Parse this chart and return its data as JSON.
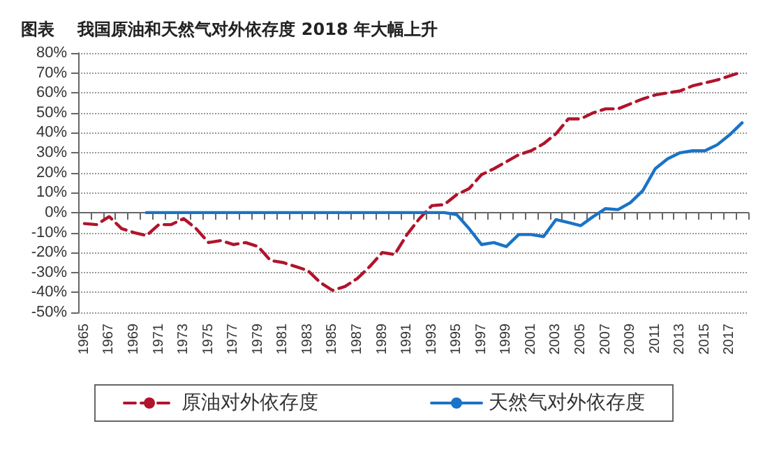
{
  "chart_data": {
    "type": "line",
    "title": "图表    我国原油和天然气对外依存度 2018 年大幅上升",
    "categories": [
      "1965",
      null,
      "1967",
      null,
      "1969",
      null,
      "1971",
      null,
      "1973",
      null,
      "1975",
      null,
      "1977",
      null,
      "1979",
      null,
      "1981",
      null,
      "1983",
      null,
      "1985",
      null,
      "1987",
      null,
      "1989",
      null,
      "1991",
      null,
      "1993",
      null,
      "1995",
      null,
      "1997",
      null,
      "1999",
      null,
      "2001",
      null,
      "2003",
      null,
      "2005",
      null,
      "2007",
      null,
      "2009",
      null,
      "2011",
      null,
      "2013",
      null,
      "2015",
      null,
      "2017",
      null
    ],
    "series": [
      {
        "name": "原油对外依存度",
        "color": "#b0142c",
        "line_style": "dashed",
        "values": [
          -5.5,
          -6,
          -2,
          -8,
          -10,
          -11.5,
          -6,
          -6,
          -3,
          -8,
          -15,
          -14,
          -16,
          -15,
          -17,
          -24,
          -25,
          -27,
          -29,
          -35,
          -39,
          -37,
          -33,
          -27,
          -20,
          -21,
          -11,
          -3,
          3.5,
          4,
          9,
          12,
          19,
          22,
          25.5,
          29,
          31,
          34.5,
          39.5,
          47,
          47,
          50,
          52,
          52,
          54.5,
          57,
          59,
          60,
          61,
          63.5,
          65,
          66.5,
          68.5,
          70.5
        ]
      },
      {
        "name": "天然气对外依存度",
        "color": "#1a73c6",
        "line_style": "solid",
        "values": [
          null,
          null,
          null,
          null,
          null,
          0,
          0,
          0,
          0,
          0,
          0,
          0,
          0,
          0,
          0,
          0,
          0,
          0,
          0,
          0,
          0,
          0,
          0,
          0,
          0,
          0,
          0,
          0,
          0,
          0,
          -1,
          -8,
          -16,
          -15,
          -17,
          -11,
          -11,
          -12,
          -3.5,
          -5,
          -6.5,
          -2,
          2,
          1.5,
          5,
          11,
          22,
          27,
          30,
          31,
          31,
          34,
          39,
          45
        ]
      }
    ],
    "ylim": [
      -50,
      80
    ],
    "yticks": [
      {
        "value": -50,
        "label": "-50%"
      },
      {
        "value": -40,
        "label": "-40%"
      },
      {
        "value": -30,
        "label": "-30%"
      },
      {
        "value": -20,
        "label": "-20%"
      },
      {
        "value": -10,
        "label": "-10%"
      },
      {
        "value": 0,
        "label": "0%"
      },
      {
        "value": 10,
        "label": "10%"
      },
      {
        "value": 20,
        "label": "20%"
      },
      {
        "value": 30,
        "label": "30%"
      },
      {
        "value": 40,
        "label": "40%"
      },
      {
        "value": 50,
        "label": "50%"
      },
      {
        "value": 60,
        "label": "60%"
      },
      {
        "value": 70,
        "label": "70%"
      },
      {
        "value": 80,
        "label": "80%"
      }
    ],
    "grid": "y",
    "legend": "bottom",
    "marker": "none"
  }
}
